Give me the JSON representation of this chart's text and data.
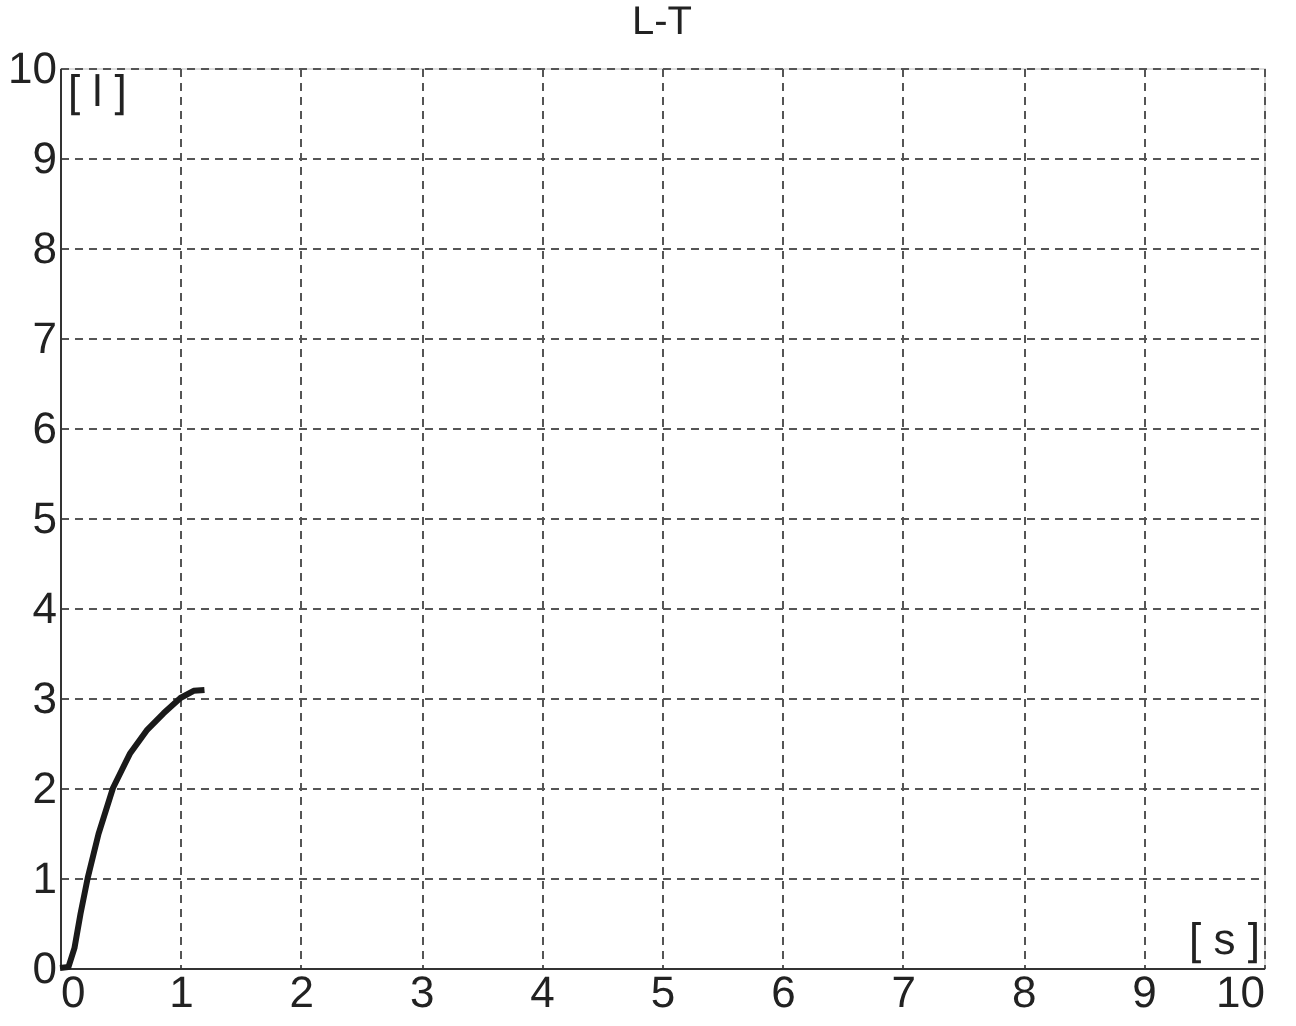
{
  "chart_data": {
    "type": "line",
    "title": "L-T",
    "xlabel": "[ s ]",
    "ylabel": "[ l ]",
    "x": [
      0,
      0.07,
      0.12,
      0.17,
      0.23,
      0.32,
      0.44,
      0.58,
      0.72,
      0.86,
      1.0,
      1.11,
      1.2
    ],
    "series": [
      {
        "color": "#1a1a1a",
        "values": [
          0,
          0.01,
          0.22,
          0.6,
          1.0,
          1.49,
          2.0,
          2.38,
          2.64,
          2.83,
          3.0,
          3.08,
          3.09
        ]
      }
    ],
    "xlim": [
      0,
      10
    ],
    "ylim": [
      0,
      10
    ],
    "xticks": [
      0,
      1,
      2,
      3,
      4,
      5,
      6,
      7,
      8,
      9,
      10
    ],
    "yticks": [
      0,
      1,
      2,
      3,
      4,
      5,
      6,
      7,
      8,
      9,
      10
    ],
    "grid": true,
    "line_style": "solid",
    "marker": "none"
  }
}
